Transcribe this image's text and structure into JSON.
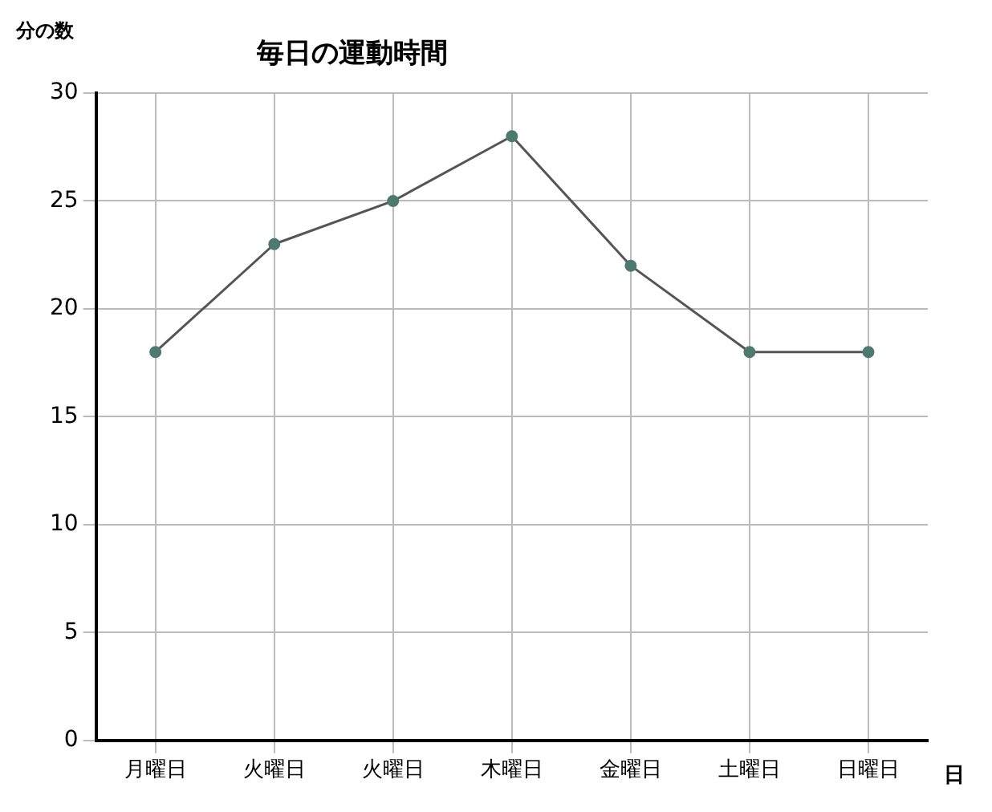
{
  "chart_data": {
    "type": "line",
    "title": "毎日の運動時間",
    "ylabel": "分の数",
    "xlabel": "日",
    "categories": [
      "月曜日",
      "火曜日",
      "火曜日",
      "木曜日",
      "金曜日",
      "土曜日",
      "日曜日"
    ],
    "series": [
      {
        "color": "#4d7a70",
        "values": [
          18,
          23,
          25,
          28,
          22,
          18,
          18
        ]
      }
    ],
    "ylim": [
      0,
      30
    ],
    "yticks": [
      0,
      5,
      10,
      15,
      20,
      25,
      30
    ],
    "grid": true,
    "marker": "circle",
    "line_style": "solid",
    "legend": false
  }
}
